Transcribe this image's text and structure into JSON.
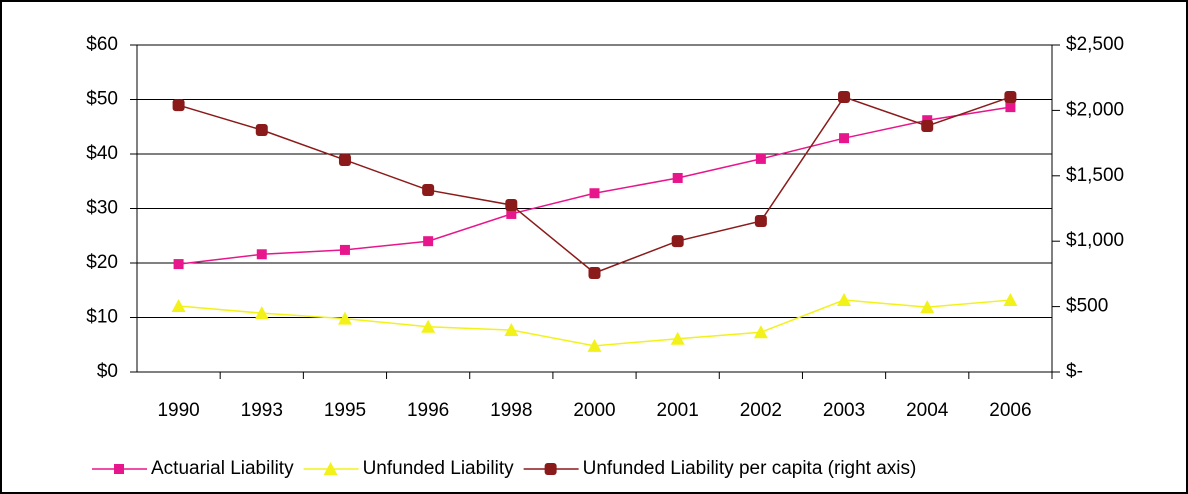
{
  "chart_data": {
    "type": "line",
    "categories": [
      "1990",
      "1993",
      "1995",
      "1996",
      "1998",
      "2000",
      "2001",
      "2002",
      "2003",
      "2004",
      "2006"
    ],
    "series": [
      {
        "name": "Actuarial Liability",
        "color": "#e8168c",
        "marker": "square",
        "values": [
          19.8,
          21.6,
          22.4,
          24,
          29,
          32.8,
          35.6,
          39.1,
          42.9,
          46.2,
          48.6
        ]
      },
      {
        "name": "Unfunded Liability",
        "color": "#f2f21a",
        "marker": "triangle",
        "values": [
          12.1,
          10.8,
          9.8,
          8.3,
          7.7,
          4.8,
          6.1,
          7.3,
          13.2,
          11.9,
          13.2
        ]
      },
      {
        "name": "Unfunded Liability per capita (right axis)",
        "color": "#8b1a1a",
        "marker": "circle",
        "axis": "y2",
        "values": [
          2040,
          1850,
          1621,
          1391,
          1277,
          757,
          1001,
          1154,
          2102,
          1881,
          2102
        ]
      }
    ],
    "ylim": [
      0,
      60
    ],
    "yticks": [
      {
        "value": 0,
        "label": "$0"
      },
      {
        "value": 10,
        "label": "$10"
      },
      {
        "value": 20,
        "label": "$20"
      },
      {
        "value": 30,
        "label": "$30"
      },
      {
        "value": 40,
        "label": "$40"
      },
      {
        "value": 50,
        "label": "$50"
      },
      {
        "value": 60,
        "label": "$60"
      }
    ],
    "y2lim": [
      0,
      2500
    ],
    "y2ticks": [
      {
        "value": 0,
        "label": "$-"
      },
      {
        "value": 500,
        "label": "$500"
      },
      {
        "value": 1000,
        "label": "$1,000"
      },
      {
        "value": 1500,
        "label": "$1,500"
      },
      {
        "value": 2000,
        "label": "$2,000"
      },
      {
        "value": 2500,
        "label": "$2,500"
      }
    ],
    "grid": true,
    "legend": "bottom"
  }
}
